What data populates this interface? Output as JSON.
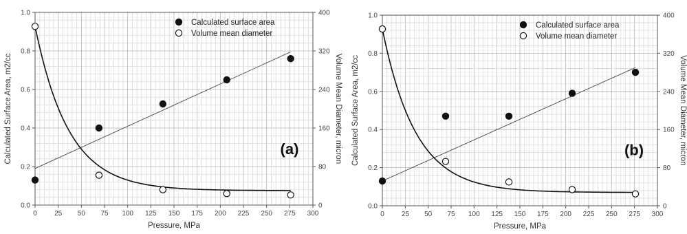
{
  "chart_data": [
    {
      "type": "scatter",
      "panel_label": "(a)",
      "xlabel": "Pressure, MPa",
      "ylabel_left": "Calculated Surface Area, m2/cc",
      "ylabel_right": "Volume Mean Diameter, micron",
      "xlim": [
        0,
        300
      ],
      "ylim_left": [
        0,
        1.0
      ],
      "ylim_right": [
        0,
        400
      ],
      "x_ticks": [
        "0",
        "25",
        "50",
        "75",
        "100",
        "125",
        "150",
        "175",
        "200",
        "225",
        "250",
        "275",
        "300"
      ],
      "y_left_ticks": [
        "0.0",
        "0.2",
        "0.4",
        "0.6",
        "0.8",
        "1.0"
      ],
      "y_right_ticks": [
        "0",
        "80",
        "160",
        "240",
        "320",
        "400"
      ],
      "grid": true,
      "legend_position": "top-right",
      "series": [
        {
          "name": "Calculated surface area",
          "axis": "left",
          "marker": "filled",
          "x": [
            0,
            69,
            138,
            207,
            276
          ],
          "y": [
            0.13,
            0.4,
            0.525,
            0.65,
            0.76
          ],
          "fit": {
            "type": "linear",
            "x": [
              0,
              276
            ],
            "y": [
              0.19,
              0.795
            ]
          }
        },
        {
          "name": "Volume mean diameter",
          "axis": "right",
          "marker": "open",
          "x": [
            0,
            69,
            138,
            207,
            276
          ],
          "y": [
            371,
            62,
            32,
            24,
            21
          ],
          "fit": {
            "type": "exponential",
            "plateau": 30,
            "amplitude": 341,
            "rate": 0.0275
          }
        }
      ]
    },
    {
      "type": "scatter",
      "panel_label": "(b)",
      "xlabel": "Pressure, MPa",
      "ylabel_left": "Calculated Surface Area, m2/cc",
      "ylabel_right": "Volume Mean Diameter, micron",
      "xlim": [
        0,
        300
      ],
      "ylim_left": [
        0,
        1.0
      ],
      "ylim_right": [
        0,
        400
      ],
      "x_ticks": [
        "0",
        "25",
        "50",
        "75",
        "100",
        "125",
        "150",
        "175",
        "200",
        "225",
        "250",
        "275",
        "300"
      ],
      "y_left_ticks": [
        "0.0",
        "0.2",
        "0.4",
        "0.6",
        "0.8",
        "1.0"
      ],
      "y_right_ticks": [
        "0",
        "80",
        "160",
        "240",
        "320",
        "400"
      ],
      "grid": true,
      "legend_position": "top-right",
      "series": [
        {
          "name": "Calculated surface area",
          "axis": "left",
          "marker": "filled",
          "x": [
            0,
            69,
            138,
            207,
            276
          ],
          "y": [
            0.13,
            0.47,
            0.47,
            0.59,
            0.7
          ],
          "fit": {
            "type": "linear",
            "x": [
              0,
              276
            ],
            "y": [
              0.13,
              0.725
            ]
          }
        },
        {
          "name": "Volume mean diameter",
          "axis": "right",
          "marker": "open",
          "x": [
            0,
            69,
            138,
            207,
            276
          ],
          "y": [
            371,
            93,
            50,
            34,
            25
          ],
          "fit": {
            "type": "exponential",
            "plateau": 28,
            "amplitude": 343,
            "rate": 0.0275
          }
        }
      ]
    }
  ]
}
